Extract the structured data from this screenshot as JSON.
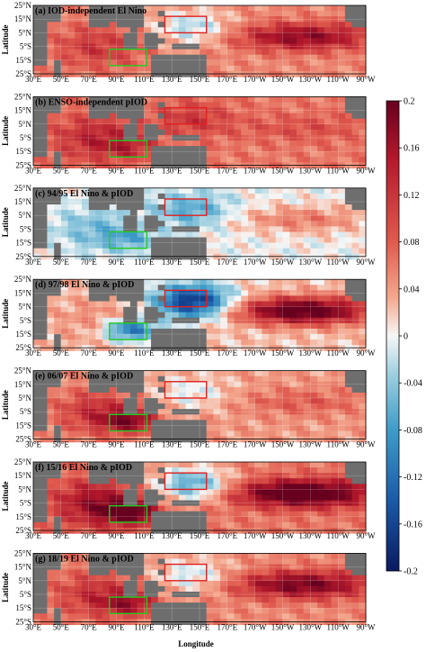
{
  "chart_data": {
    "type": "heatmap",
    "xlabel": "Longitude",
    "ylabel": "Latitude",
    "x_ticks": [
      "30°E",
      "50°E",
      "70°E",
      "90°E",
      "110°E",
      "130°E",
      "150°E",
      "170°E",
      "170°W",
      "150°W",
      "130°W",
      "110°W",
      "90°W"
    ],
    "y_ticks": [
      "25°N",
      "15°N",
      "5°N",
      "5°S",
      "15°S",
      "25°S"
    ],
    "lon_range": [
      30,
      270
    ],
    "lat_range": [
      -25,
      25
    ],
    "colorbar": {
      "ticks": [
        "0.2",
        "0.16",
        "0.12",
        "0.08",
        "0.04",
        "0",
        "-0.04",
        "-0.08",
        "-0.12",
        "-0.16",
        "-0.2"
      ],
      "range": [
        -0.2,
        0.2
      ]
    },
    "boxes": [
      {
        "color": "#e02020",
        "lon": [
          125,
          155
        ],
        "lat": [
          5,
          17
        ]
      },
      {
        "color": "#22cc22",
        "lon": [
          85,
          112
        ],
        "lat": [
          -19,
          -7
        ]
      }
    ],
    "panels": [
      {
        "label": "(a) IOD-independent El Nino"
      },
      {
        "label": "(b) ENSO-independent pIOD"
      },
      {
        "label": "(c) 94/95 El Nino & pIOD"
      },
      {
        "label": "(d) 97/98 El Nino & pIOD"
      },
      {
        "label": "(e) 06/07 El Nino & pIOD"
      },
      {
        "label": "(f) 15/16 El Nino & pIOD"
      },
      {
        "label": "(g) 18/19 El Nino & pIOD"
      }
    ]
  }
}
